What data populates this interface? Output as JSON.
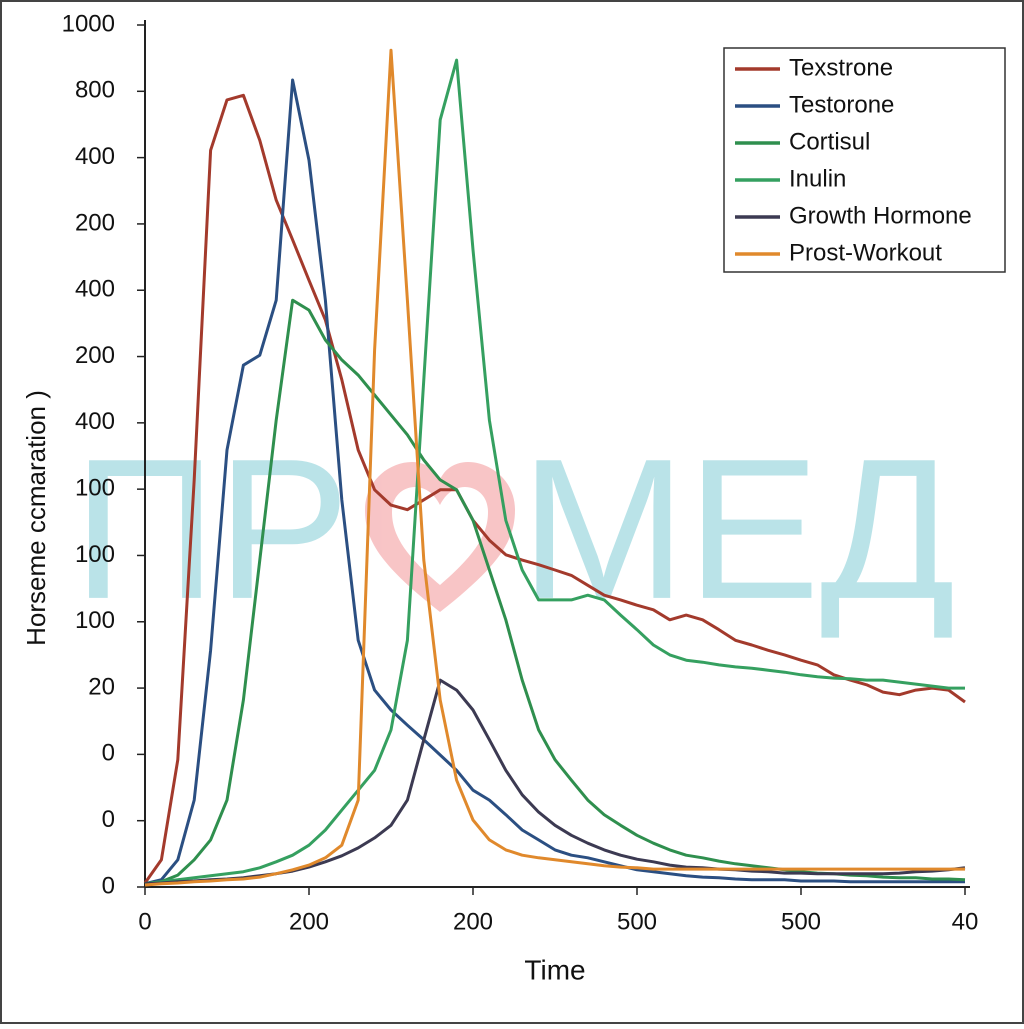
{
  "chart_data": {
    "type": "line",
    "xlabel": "Time",
    "ylabel": "Horseme ccmaration )",
    "watermark": [
      "ПР",
      "МЕД"
    ],
    "legend": "upper right",
    "xlim": [
      0,
      500
    ],
    "ylim": [
      0,
      1300
    ],
    "xticks": [
      0,
      {
        "value": 100,
        "label": "200"
      },
      {
        "value": 200,
        "label": "200"
      },
      {
        "value": 300,
        "label": "500"
      },
      {
        "value": 400,
        "label": "500"
      },
      {
        "value": 500,
        "label": "40"
      }
    ],
    "yticks": [
      0,
      {
        "value": 100,
        "label": "0"
      },
      {
        "value": 200,
        "label": "0"
      },
      {
        "value": 300,
        "label": "20"
      },
      {
        "value": 400,
        "label": "100"
      },
      {
        "value": 500,
        "label": "100"
      },
      {
        "value": 600,
        "label": "100"
      },
      {
        "value": 700,
        "label": "400"
      },
      {
        "value": 800,
        "label": "200"
      },
      {
        "value": 900,
        "label": "400"
      },
      {
        "value": 1000,
        "label": "200"
      },
      {
        "value": 1100,
        "label": "400"
      },
      {
        "value": 1200,
        "label": "800"
      },
      {
        "value": 1300,
        "label": "1000"
      }
    ],
    "x": [
      0,
      10,
      20,
      30,
      40,
      50,
      60,
      70,
      80,
      90,
      100,
      110,
      120,
      130,
      140,
      150,
      160,
      170,
      180,
      190,
      200,
      210,
      220,
      230,
      240,
      250,
      260,
      270,
      280,
      290,
      300,
      310,
      320,
      330,
      340,
      350,
      360,
      370,
      380,
      390,
      400,
      410,
      420,
      430,
      440,
      450,
      460,
      470,
      480,
      490,
      500
    ],
    "series": [
      {
        "name": "Texstrone",
        "color": "#a33a2c",
        "values": [
          6,
          41,
          192,
          614,
          1111,
          1187,
          1194,
          1126,
          1036,
          976,
          915,
          855,
          765,
          659,
          599,
          576,
          569,
          584,
          599,
          599,
          553,
          523,
          501,
          493,
          486,
          478,
          470,
          455,
          440,
          433,
          425,
          418,
          403,
          410,
          403,
          388,
          372,
          365,
          357,
          350,
          342,
          335,
          320,
          312,
          305,
          294,
          290,
          297,
          300,
          297,
          279
        ]
      },
      {
        "name": "Testorone",
        "color": "#2b4f82",
        "values": [
          5,
          11,
          41,
          131,
          357,
          659,
          787,
          802,
          885,
          1217,
          1096,
          885,
          584,
          372,
          297,
          267,
          244,
          222,
          199,
          176,
          146,
          131,
          109,
          86,
          71,
          56,
          48,
          44,
          38,
          32,
          26,
          23,
          20,
          17,
          15,
          14,
          12,
          11,
          11,
          11,
          9,
          9,
          9,
          8,
          8,
          8,
          8,
          8,
          8,
          8,
          8
        ]
      },
      {
        "name": "Cortisul",
        "color": "#2f8f4e",
        "values": [
          5,
          8,
          18,
          41,
          71,
          131,
          282,
          493,
          704,
          885,
          870,
          825,
          795,
          772,
          742,
          712,
          682,
          644,
          614,
          599,
          553,
          478,
          403,
          312,
          237,
          192,
          161,
          131,
          109,
          93,
          78,
          66,
          56,
          48,
          44,
          39,
          35,
          32,
          29,
          26,
          23,
          21,
          20,
          18,
          17,
          15,
          14,
          14,
          12,
          12,
          11
        ]
      },
      {
        "name": "Inulin",
        "color": "#35a060",
        "values": [
          5,
          8,
          11,
          14,
          17,
          20,
          23,
          29,
          38,
          48,
          63,
          86,
          116,
          146,
          176,
          237,
          372,
          765,
          1157,
          1247,
          961,
          704,
          553,
          478,
          433,
          433,
          433,
          440,
          433,
          410,
          388,
          365,
          350,
          342,
          339,
          335,
          332,
          330,
          327,
          324,
          320,
          317,
          315,
          314,
          312,
          312,
          309,
          306,
          303,
          300,
          300
        ]
      },
      {
        "name": "Growth Hormone",
        "color": "#3c3a52",
        "values": [
          5,
          6,
          8,
          9,
          11,
          12,
          14,
          17,
          20,
          24,
          30,
          38,
          47,
          59,
          74,
          93,
          131,
          222,
          312,
          297,
          267,
          222,
          176,
          139,
          113,
          93,
          78,
          66,
          56,
          48,
          42,
          38,
          33,
          30,
          29,
          27,
          26,
          24,
          23,
          21,
          21,
          20,
          20,
          20,
          20,
          20,
          21,
          23,
          24,
          26,
          29
        ]
      },
      {
        "name": "Prost-Workout",
        "color": "#e0892c",
        "values": [
          3,
          5,
          6,
          8,
          9,
          11,
          12,
          15,
          20,
          26,
          33,
          44,
          63,
          131,
          810,
          1262,
          885,
          493,
          282,
          161,
          101,
          71,
          56,
          48,
          44,
          41,
          38,
          35,
          32,
          30,
          29,
          27,
          27,
          27,
          27,
          27,
          27,
          27,
          27,
          27,
          27,
          27,
          27,
          27,
          27,
          27,
          27,
          27,
          27,
          27,
          27
        ]
      }
    ]
  }
}
